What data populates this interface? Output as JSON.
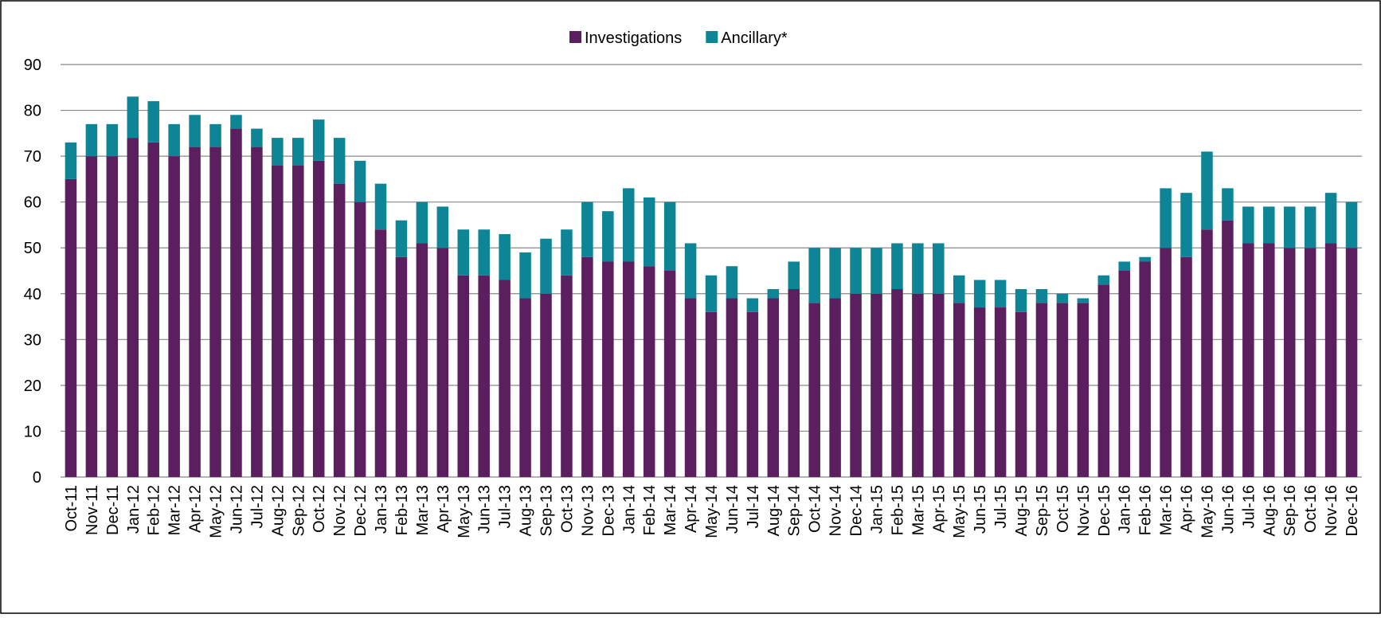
{
  "chart_data": {
    "type": "stacked_bar",
    "categories": [
      "Oct-11",
      "Nov-11",
      "Dec-11",
      "Jan-12",
      "Feb-12",
      "Mar-12",
      "Apr-12",
      "May-12",
      "Jun-12",
      "Jul-12",
      "Aug-12",
      "Sep-12",
      "Oct-12",
      "Nov-12",
      "Dec-12",
      "Jan-13",
      "Feb-13",
      "Mar-13",
      "Apr-13",
      "May-13",
      "Jun-13",
      "Jul-13",
      "Aug-13",
      "Sep-13",
      "Oct-13",
      "Nov-13",
      "Dec-13",
      "Jan-14",
      "Feb-14",
      "Mar-14",
      "Apr-14",
      "May-14",
      "Jun-14",
      "Jul-14",
      "Aug-14",
      "Sep-14",
      "Oct-14",
      "Nov-14",
      "Dec-14",
      "Jan-15",
      "Feb-15",
      "Mar-15",
      "Apr-15",
      "May-15",
      "Jun-15",
      "Jul-15",
      "Aug-15",
      "Sep-15",
      "Oct-15",
      "Nov-15",
      "Dec-15",
      "Jan-16",
      "Feb-16",
      "Mar-16",
      "Apr-16",
      "May-16",
      "Jun-16",
      "Jul-16",
      "Aug-16",
      "Sep-16",
      "Oct-16",
      "Nov-16",
      "Dec-16"
    ],
    "series": [
      {
        "name": "Investigations",
        "color": "#5b1f5f",
        "values": [
          65,
          70,
          70,
          74,
          73,
          70,
          72,
          72,
          76,
          72,
          68,
          68,
          69,
          64,
          60,
          54,
          48,
          51,
          50,
          44,
          44,
          43,
          39,
          40,
          44,
          48,
          47,
          47,
          46,
          45,
          39,
          36,
          39,
          36,
          39,
          41,
          38,
          39,
          40,
          40,
          41,
          40,
          40,
          38,
          37,
          37,
          36,
          38,
          38,
          38,
          42,
          45,
          47,
          50,
          48,
          54,
          56,
          51,
          51,
          50,
          50,
          51,
          50
        ]
      },
      {
        "name": "Ancillary*",
        "color": "#0e8596",
        "values": [
          8,
          7,
          7,
          9,
          9,
          7,
          7,
          5,
          3,
          4,
          6,
          6,
          9,
          10,
          9,
          10,
          8,
          9,
          9,
          10,
          10,
          10,
          10,
          12,
          10,
          12,
          11,
          16,
          15,
          15,
          12,
          8,
          7,
          3,
          2,
          6,
          12,
          11,
          10,
          10,
          10,
          11,
          11,
          6,
          6,
          6,
          5,
          3,
          2,
          1,
          2,
          2,
          1,
          13,
          14,
          17,
          7,
          8,
          8,
          9,
          9,
          11,
          10
        ]
      }
    ],
    "ylim": [
      0,
      90
    ],
    "yticks": [
      0,
      10,
      20,
      30,
      40,
      50,
      60,
      70,
      80,
      90
    ],
    "grid": true,
    "legend": "top"
  }
}
